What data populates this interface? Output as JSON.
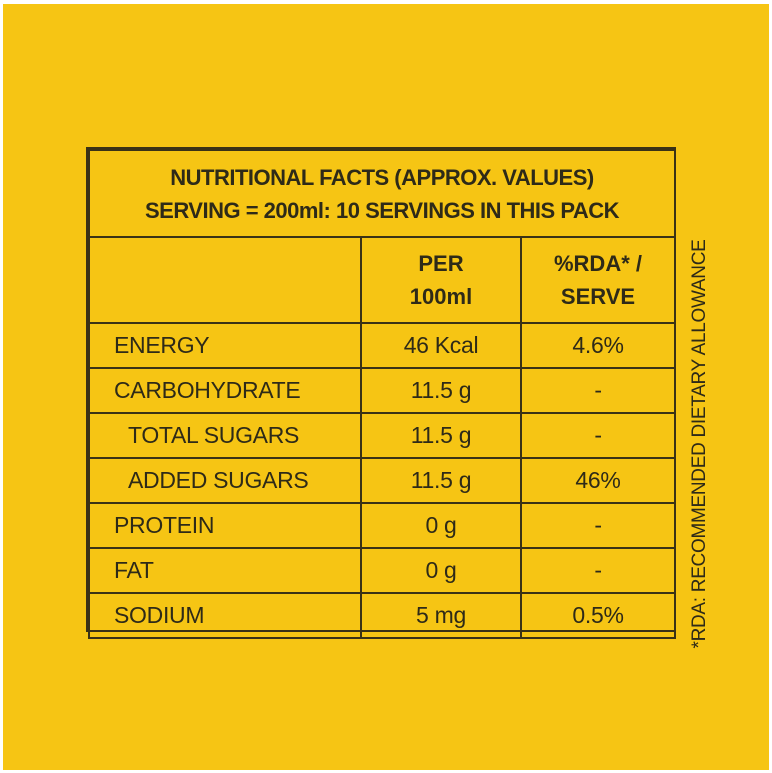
{
  "panel": {
    "background": "#f6c514"
  },
  "table": {
    "title_line1": "NUTRITIONAL FACTS  (APPROX. VALUES)",
    "title_line2": "SERVING = 200ml: 10 SERVINGS IN THIS PACK",
    "col_per_line1": "PER",
    "col_per_line2": "100ml",
    "col_rda_line1": "%RDA* /",
    "col_rda_line2": "SERVE",
    "rows": [
      {
        "label": "ENERGY",
        "per100": "46 Kcal",
        "rda": "4.6%"
      },
      {
        "label": "CARBOHYDRATE",
        "per100": "11.5 g",
        "rda": "-"
      },
      {
        "label": "TOTAL SUGARS",
        "per100": "11.5 g",
        "rda": "-"
      },
      {
        "label": "ADDED SUGARS",
        "per100": "11.5 g",
        "rda": "46%"
      },
      {
        "label": "PROTEIN",
        "per100": "0 g",
        "rda": "-"
      },
      {
        "label": "FAT",
        "per100": "0 g",
        "rda": "-"
      },
      {
        "label": "SODIUM",
        "per100": "5 mg",
        "rda": "0.5%"
      }
    ]
  },
  "footnote": "*RDA: RECOMMENDED DIETARY ALLOWANCE"
}
